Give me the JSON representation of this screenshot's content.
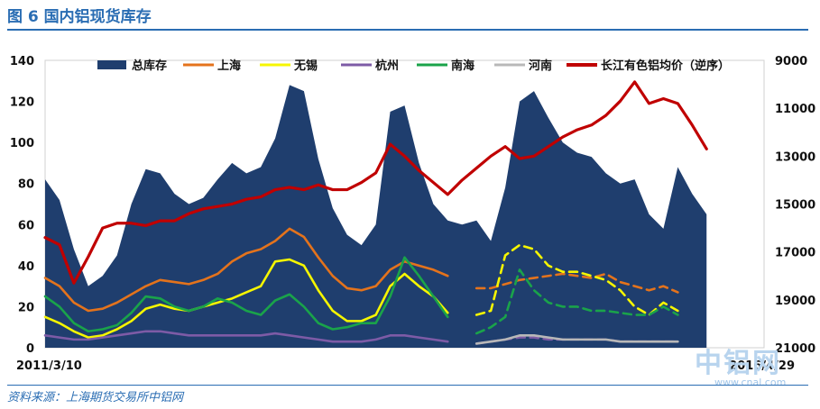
{
  "page": {
    "title": "图 6 国内铝现货库存",
    "source": "资料来源：上海期货交易所中铝网",
    "watermark_main": "中铝网",
    "watermark_sub": "www.cnal.com"
  },
  "chart_data": {
    "type": "area",
    "title": "",
    "x_start_label": "2011/3/10",
    "x_end_label": "2016/4/29",
    "y_left": {
      "ylim": [
        0,
        140
      ],
      "ticks": [
        "0",
        "20",
        "40",
        "60",
        "80",
        "100",
        "120",
        "140"
      ]
    },
    "y_right": {
      "ylim": [
        9000,
        21000
      ],
      "inverted": true,
      "ticks": [
        "9000",
        "11000",
        "13000",
        "15000",
        "17000",
        "19000",
        "21000"
      ]
    },
    "legend_position": "top",
    "x": [
      0,
      2,
      4,
      6,
      8,
      10,
      12,
      14,
      16,
      18,
      20,
      22,
      24,
      26,
      28,
      30,
      32,
      34,
      36,
      38,
      40,
      42,
      44,
      46,
      48,
      50,
      52,
      54,
      56,
      58,
      60,
      62,
      64,
      66,
      68,
      70,
      72,
      74,
      76,
      78,
      80,
      82,
      84,
      86,
      88,
      90,
      92,
      94,
      96,
      98,
      100
    ],
    "series": [
      {
        "name": "总库存",
        "axis": "left",
        "kind": "area",
        "color": "#1f3e6e",
        "values": [
          82,
          72,
          48,
          30,
          35,
          45,
          70,
          87,
          85,
          75,
          70,
          73,
          82,
          90,
          85,
          88,
          102,
          128,
          125,
          92,
          68,
          55,
          50,
          60,
          115,
          118,
          90,
          70,
          62,
          60,
          62,
          52,
          78,
          120,
          125,
          112,
          100,
          95,
          93,
          85,
          80,
          82,
          65,
          58,
          88,
          75,
          65,
          null,
          null,
          null,
          null
        ]
      },
      {
        "name": "上海",
        "axis": "left",
        "kind": "line",
        "color": "#e4731c",
        "values": [
          34,
          30,
          22,
          18,
          19,
          22,
          26,
          30,
          33,
          32,
          31,
          33,
          36,
          42,
          46,
          48,
          52,
          58,
          54,
          44,
          35,
          29,
          28,
          30,
          38,
          42,
          40,
          38,
          35,
          null,
          29,
          29,
          31,
          33,
          34,
          35,
          36,
          35,
          34,
          36,
          32,
          30,
          28,
          30,
          27,
          null,
          null,
          null,
          null,
          null,
          null
        ]
      },
      {
        "name": "无锡",
        "axis": "left",
        "kind": "line",
        "color": "#f6f600",
        "values": [
          15,
          12,
          8,
          5,
          6,
          9,
          13,
          19,
          21,
          19,
          18,
          20,
          22,
          24,
          27,
          30,
          42,
          43,
          40,
          28,
          18,
          13,
          13,
          16,
          30,
          36,
          30,
          25,
          17,
          null,
          16,
          18,
          45,
          50,
          48,
          40,
          37,
          37,
          35,
          33,
          28,
          20,
          16,
          22,
          18,
          null,
          null,
          null,
          null,
          null,
          null
        ]
      },
      {
        "name": "杭州",
        "axis": "left",
        "kind": "line",
        "color": "#7d5ba6",
        "values": [
          6,
          5,
          4,
          4,
          5,
          6,
          7,
          8,
          8,
          7,
          6,
          6,
          6,
          6,
          6,
          6,
          7,
          6,
          5,
          4,
          3,
          3,
          3,
          4,
          6,
          6,
          5,
          4,
          3,
          null,
          2,
          3,
          4,
          5,
          5,
          4,
          4,
          4,
          4,
          4,
          3,
          3,
          3,
          3,
          3,
          null,
          null,
          null,
          null,
          null,
          null
        ]
      },
      {
        "name": "南海",
        "axis": "left",
        "kind": "line",
        "color": "#1aa34a",
        "values": [
          25,
          20,
          12,
          8,
          9,
          11,
          17,
          25,
          24,
          20,
          18,
          20,
          24,
          22,
          18,
          16,
          23,
          26,
          20,
          12,
          9,
          10,
          12,
          12,
          25,
          44,
          35,
          25,
          15,
          null,
          7,
          10,
          15,
          38,
          28,
          22,
          20,
          20,
          18,
          18,
          17,
          16,
          16,
          20,
          16,
          null,
          null,
          null,
          null,
          null,
          null
        ]
      },
      {
        "name": "河南",
        "axis": "left",
        "kind": "line",
        "color": "#b8b8b8",
        "values": [
          null,
          null,
          null,
          null,
          null,
          null,
          null,
          null,
          null,
          null,
          null,
          null,
          null,
          null,
          null,
          null,
          null,
          null,
          null,
          null,
          null,
          null,
          null,
          null,
          null,
          null,
          null,
          null,
          null,
          null,
          2,
          3,
          4,
          6,
          6,
          5,
          4,
          4,
          4,
          4,
          3,
          3,
          3,
          3,
          3,
          null,
          null,
          null,
          null,
          null,
          null
        ]
      },
      {
        "name": "长江有色铝均价（逆序）",
        "axis": "right",
        "kind": "line",
        "color": "#c00000",
        "values": [
          16400,
          16700,
          18300,
          17200,
          16000,
          15800,
          15800,
          15900,
          15700,
          15700,
          15400,
          15200,
          15100,
          15000,
          14800,
          14700,
          14400,
          14300,
          14400,
          14200,
          14400,
          14400,
          14100,
          13700,
          12500,
          13000,
          13600,
          14100,
          14600,
          14000,
          13500,
          13000,
          12600,
          13100,
          13000,
          12600,
          12200,
          11900,
          11700,
          11300,
          10700,
          9900,
          10800,
          10600,
          10800,
          11700,
          12700,
          null,
          null,
          null,
          null
        ]
      }
    ]
  }
}
